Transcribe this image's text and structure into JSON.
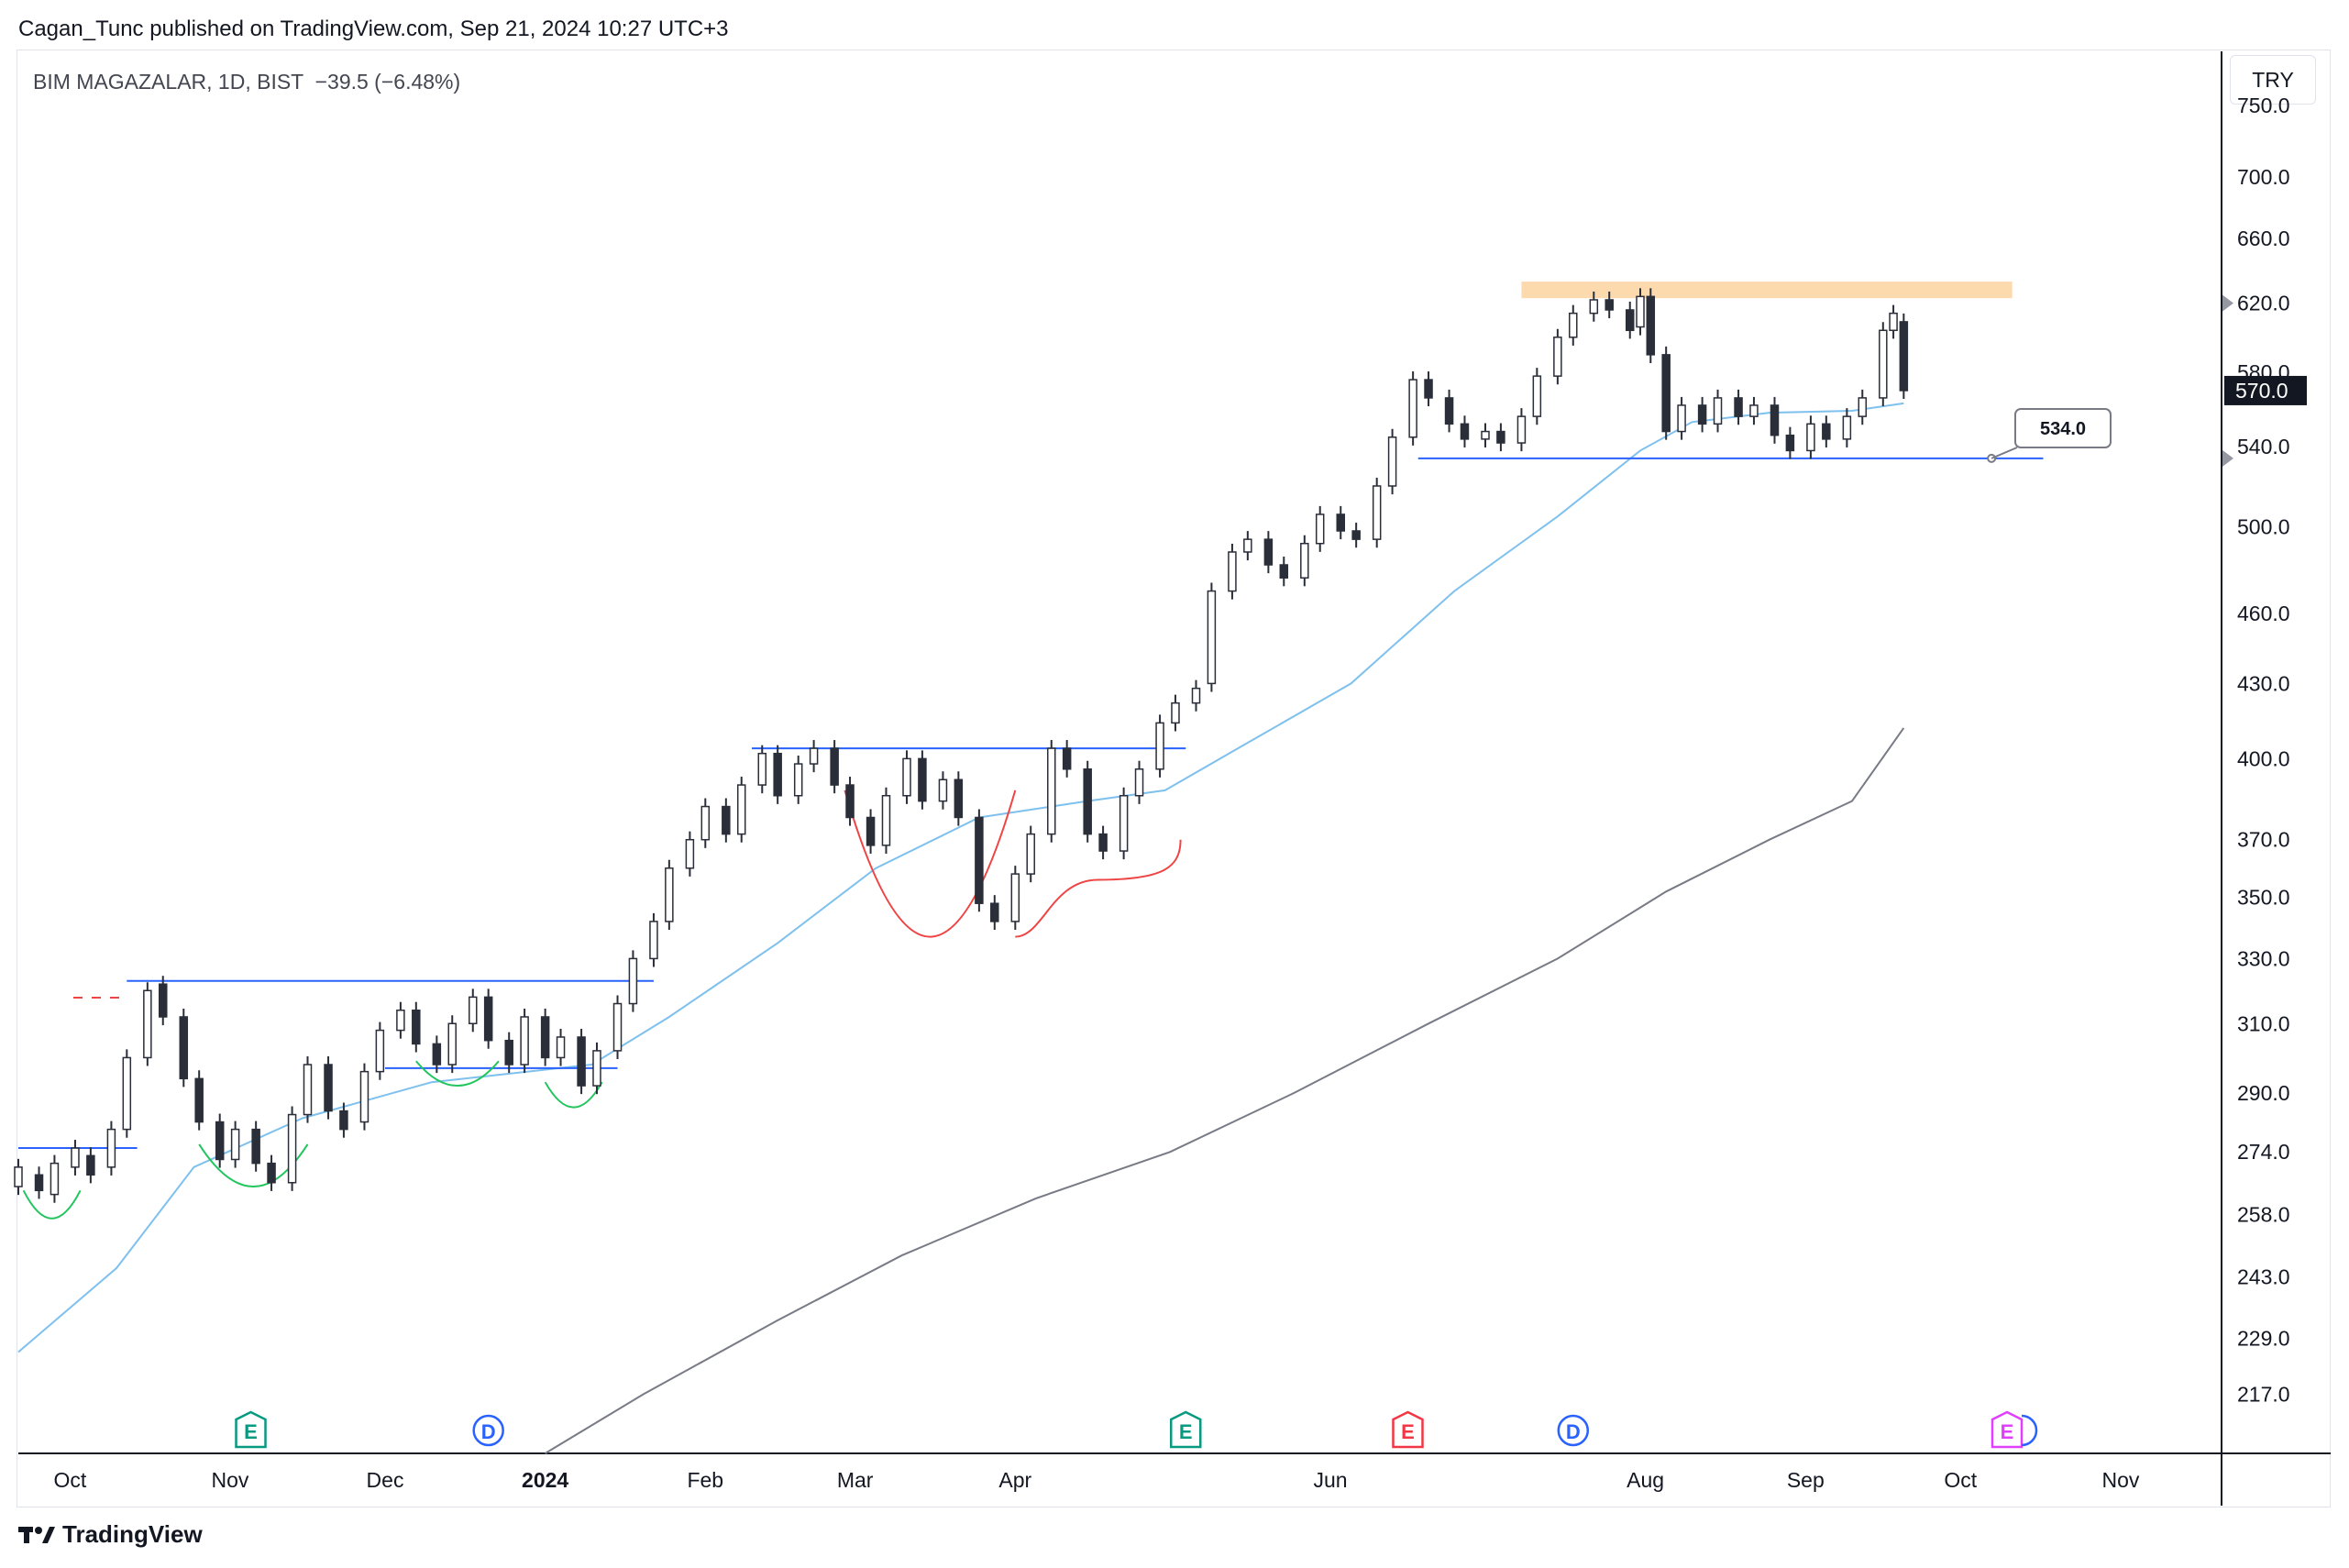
{
  "header": {
    "published": "Cagan_Tunc published on TradingView.com, Sep 21, 2024 10:27 UTC+3"
  },
  "symbol": {
    "name": "BIM MAGAZALAR, 1D, BIST",
    "change": "−39.5 (−6.48%)"
  },
  "currency": "TRY",
  "footer": {
    "brand": "TradingView"
  },
  "colors": {
    "candle": "#2a2e39",
    "ma_fast": "#7ec0ee",
    "ma_slow": "#787b86",
    "level_line": "#2962ff",
    "arc_green": "#22c55e",
    "arc_red": "#ef4444",
    "resistance_zone": "#fdd9ae",
    "earnings_green": "#089981",
    "earnings_red": "#f23645",
    "dividend_blue": "#2962ff",
    "earnings_future": "#e040fb"
  },
  "chart_data": {
    "type": "candlestick",
    "title": "",
    "scale": "log",
    "ylim": [
      205,
      790
    ],
    "y_ticks": [
      "750.0",
      "700.0",
      "660.0",
      "620.0",
      "580.0",
      "540.0",
      "500.0",
      "460.0",
      "430.0",
      "400.0",
      "370.0",
      "350.0",
      "330.0",
      "310.0",
      "290.0",
      "274.0",
      "258.0",
      "243.0",
      "229.0",
      "217.0"
    ],
    "x_ticks": [
      "Oct",
      "Nov",
      "Dec",
      "2024",
      "Feb",
      "Mar",
      "Apr",
      "Jun",
      "Aug",
      "Sep",
      "Oct",
      "Nov"
    ],
    "x_range": [
      "2023-09-21",
      "2024-11-20"
    ],
    "last_price": "570.0",
    "price_marker": "534.0",
    "levels": [
      {
        "value": 275,
        "from": "2023-09-21",
        "to": "2023-10-14"
      },
      {
        "value": 323,
        "from": "2023-10-12",
        "to": "2024-01-22"
      },
      {
        "value": 297,
        "from": "2023-12-01",
        "to": "2024-01-15"
      },
      {
        "value": 404,
        "from": "2024-02-10",
        "to": "2024-05-04"
      },
      {
        "value": 534,
        "from": "2024-06-18",
        "to": "2024-10-17"
      }
    ],
    "resistance_zone": {
      "low": 623,
      "high": 633,
      "from": "2024-07-08",
      "to": "2024-10-11"
    },
    "ma_fast": [
      [
        "2023-09-21",
        226
      ],
      [
        "2023-10-10",
        245
      ],
      [
        "2023-10-25",
        270
      ],
      [
        "2023-11-15",
        283
      ],
      [
        "2023-12-10",
        293
      ],
      [
        "2024-01-10",
        298
      ],
      [
        "2024-01-25",
        312
      ],
      [
        "2024-02-15",
        335
      ],
      [
        "2024-03-05",
        360
      ],
      [
        "2024-03-25",
        378
      ],
      [
        "2024-04-15",
        384
      ],
      [
        "2024-04-30",
        388
      ],
      [
        "2024-05-15",
        405
      ],
      [
        "2024-06-05",
        430
      ],
      [
        "2024-06-25",
        470
      ],
      [
        "2024-07-15",
        505
      ],
      [
        "2024-07-31",
        538
      ],
      [
        "2024-08-10",
        553
      ],
      [
        "2024-08-25",
        558
      ],
      [
        "2024-09-10",
        559
      ],
      [
        "2024-09-20",
        563
      ]
    ],
    "ma_slow": [
      [
        "2024-01-01",
        205
      ],
      [
        "2024-01-20",
        217
      ],
      [
        "2024-02-15",
        233
      ],
      [
        "2024-03-10",
        248
      ],
      [
        "2024-04-05",
        262
      ],
      [
        "2024-05-01",
        274
      ],
      [
        "2024-05-25",
        290
      ],
      [
        "2024-06-20",
        310
      ],
      [
        "2024-07-15",
        330
      ],
      [
        "2024-08-05",
        352
      ],
      [
        "2024-08-25",
        370
      ],
      [
        "2024-09-10",
        384
      ],
      [
        "2024-09-20",
        412
      ]
    ],
    "candles": [
      [
        "2023-09-21",
        265,
        270
      ],
      [
        "2023-09-25",
        268,
        264
      ],
      [
        "2023-09-28",
        263,
        271
      ],
      [
        "2023-10-02",
        270,
        275
      ],
      [
        "2023-10-05",
        273,
        268
      ],
      [
        "2023-10-09",
        270,
        280
      ],
      [
        "2023-10-12",
        280,
        300
      ],
      [
        "2023-10-16",
        300,
        320
      ],
      [
        "2023-10-19",
        322,
        312
      ],
      [
        "2023-10-23",
        312,
        294
      ],
      [
        "2023-10-26",
        294,
        282
      ],
      [
        "2023-10-30",
        282,
        272
      ],
      [
        "2023-11-02",
        272,
        280
      ],
      [
        "2023-11-06",
        280,
        271
      ],
      [
        "2023-11-09",
        271,
        266
      ],
      [
        "2023-11-13",
        266,
        284
      ],
      [
        "2023-11-16",
        284,
        298
      ],
      [
        "2023-11-20",
        298,
        285
      ],
      [
        "2023-11-23",
        285,
        280
      ],
      [
        "2023-11-27",
        282,
        296
      ],
      [
        "2023-11-30",
        296,
        308
      ],
      [
        "2023-12-04",
        308,
        314
      ],
      [
        "2023-12-07",
        314,
        304
      ],
      [
        "2023-12-11",
        304,
        298
      ],
      [
        "2023-12-14",
        298,
        310
      ],
      [
        "2023-12-18",
        310,
        318
      ],
      [
        "2023-12-21",
        318,
        305
      ],
      [
        "2023-12-25",
        305,
        298
      ],
      [
        "2023-12-28",
        298,
        312
      ],
      [
        "2024-01-01",
        312,
        300
      ],
      [
        "2024-01-04",
        300,
        306
      ],
      [
        "2024-01-08",
        306,
        292
      ],
      [
        "2024-01-11",
        292,
        302
      ],
      [
        "2024-01-15",
        302,
        316
      ],
      [
        "2024-01-18",
        316,
        330
      ],
      [
        "2024-01-22",
        330,
        342
      ],
      [
        "2024-01-25",
        342,
        360
      ],
      [
        "2024-01-29",
        360,
        370
      ],
      [
        "2024-02-01",
        370,
        382
      ],
      [
        "2024-02-05",
        382,
        372
      ],
      [
        "2024-02-08",
        372,
        390
      ],
      [
        "2024-02-12",
        390,
        402
      ],
      [
        "2024-02-15",
        402,
        386
      ],
      [
        "2024-02-19",
        386,
        398
      ],
      [
        "2024-02-22",
        398,
        404
      ],
      [
        "2024-02-26",
        404,
        390
      ],
      [
        "2024-02-29",
        390,
        378
      ],
      [
        "2024-03-04",
        378,
        368
      ],
      [
        "2024-03-07",
        368,
        386
      ],
      [
        "2024-03-11",
        386,
        400
      ],
      [
        "2024-03-14",
        400,
        384
      ],
      [
        "2024-03-18",
        384,
        392
      ],
      [
        "2024-03-21",
        392,
        378
      ],
      [
        "2024-03-25",
        378,
        348
      ],
      [
        "2024-03-28",
        348,
        342
      ],
      [
        "2024-04-01",
        342,
        358
      ],
      [
        "2024-04-04",
        358,
        372
      ],
      [
        "2024-04-08",
        372,
        404
      ],
      [
        "2024-04-11",
        404,
        396
      ],
      [
        "2024-04-15",
        396,
        372
      ],
      [
        "2024-04-18",
        372,
        366
      ],
      [
        "2024-04-22",
        366,
        386
      ],
      [
        "2024-04-25",
        386,
        396
      ],
      [
        "2024-04-29",
        396,
        414
      ],
      [
        "2024-05-02",
        414,
        422
      ],
      [
        "2024-05-06",
        422,
        428
      ],
      [
        "2024-05-09",
        430,
        470
      ],
      [
        "2024-05-13",
        470,
        488
      ],
      [
        "2024-05-16",
        488,
        494
      ],
      [
        "2024-05-20",
        494,
        482
      ],
      [
        "2024-05-23",
        482,
        476
      ],
      [
        "2024-05-27",
        476,
        492
      ],
      [
        "2024-05-30",
        492,
        506
      ],
      [
        "2024-06-03",
        506,
        498
      ],
      [
        "2024-06-06",
        498,
        494
      ],
      [
        "2024-06-10",
        494,
        520
      ],
      [
        "2024-06-13",
        520,
        545
      ],
      [
        "2024-06-17",
        545,
        576
      ],
      [
        "2024-06-20",
        576,
        566
      ],
      [
        "2024-06-24",
        566,
        552
      ],
      [
        "2024-06-27",
        552,
        544
      ],
      [
        "2024-07-01",
        544,
        548
      ],
      [
        "2024-07-04",
        548,
        542
      ],
      [
        "2024-07-08",
        542,
        556
      ],
      [
        "2024-07-11",
        556,
        578
      ],
      [
        "2024-07-15",
        578,
        600
      ],
      [
        "2024-07-18",
        600,
        614
      ],
      [
        "2024-07-22",
        614,
        622
      ],
      [
        "2024-07-25",
        622,
        616
      ],
      [
        "2024-07-29",
        616,
        604
      ],
      [
        "2024-07-31",
        606,
        624
      ],
      [
        "2024-08-02",
        624,
        590
      ],
      [
        "2024-08-05",
        590,
        548
      ],
      [
        "2024-08-08",
        548,
        562
      ],
      [
        "2024-08-12",
        562,
        552
      ],
      [
        "2024-08-15",
        552,
        566
      ],
      [
        "2024-08-19",
        566,
        556
      ],
      [
        "2024-08-22",
        556,
        562
      ],
      [
        "2024-08-26",
        562,
        546
      ],
      [
        "2024-08-29",
        546,
        538
      ],
      [
        "2024-09-02",
        538,
        552
      ],
      [
        "2024-09-05",
        552,
        544
      ],
      [
        "2024-09-09",
        544,
        556
      ],
      [
        "2024-09-12",
        556,
        566
      ],
      [
        "2024-09-16",
        566,
        604
      ],
      [
        "2024-09-18",
        604,
        614
      ],
      [
        "2024-09-20",
        609,
        570
      ]
    ],
    "arcs": [
      {
        "color": "green",
        "from": "2023-09-22",
        "to": "2023-10-03",
        "top": 264,
        "bottom": 257
      },
      {
        "color": "green",
        "from": "2023-10-26",
        "to": "2023-11-16",
        "top": 276,
        "bottom": 265
      },
      {
        "color": "green",
        "from": "2023-12-07",
        "to": "2023-12-23",
        "top": 299,
        "bottom": 292
      },
      {
        "color": "green",
        "from": "2024-01-01",
        "to": "2024-01-12",
        "top": 293,
        "bottom": 286
      },
      {
        "color": "red",
        "from": "2024-02-28",
        "to": "2024-04-01",
        "top": 388,
        "bottom": 337
      }
    ],
    "events": [
      {
        "type": "E",
        "color": "green",
        "date": "2023-11-05"
      },
      {
        "type": "D",
        "color": "blue",
        "date": "2023-12-21"
      },
      {
        "type": "E",
        "color": "green",
        "date": "2024-05-04"
      },
      {
        "type": "E",
        "color": "red",
        "date": "2024-06-16"
      },
      {
        "type": "D",
        "color": "blue",
        "date": "2024-07-18"
      },
      {
        "type": "E",
        "color": "magenta",
        "date": "2024-10-10"
      }
    ]
  }
}
